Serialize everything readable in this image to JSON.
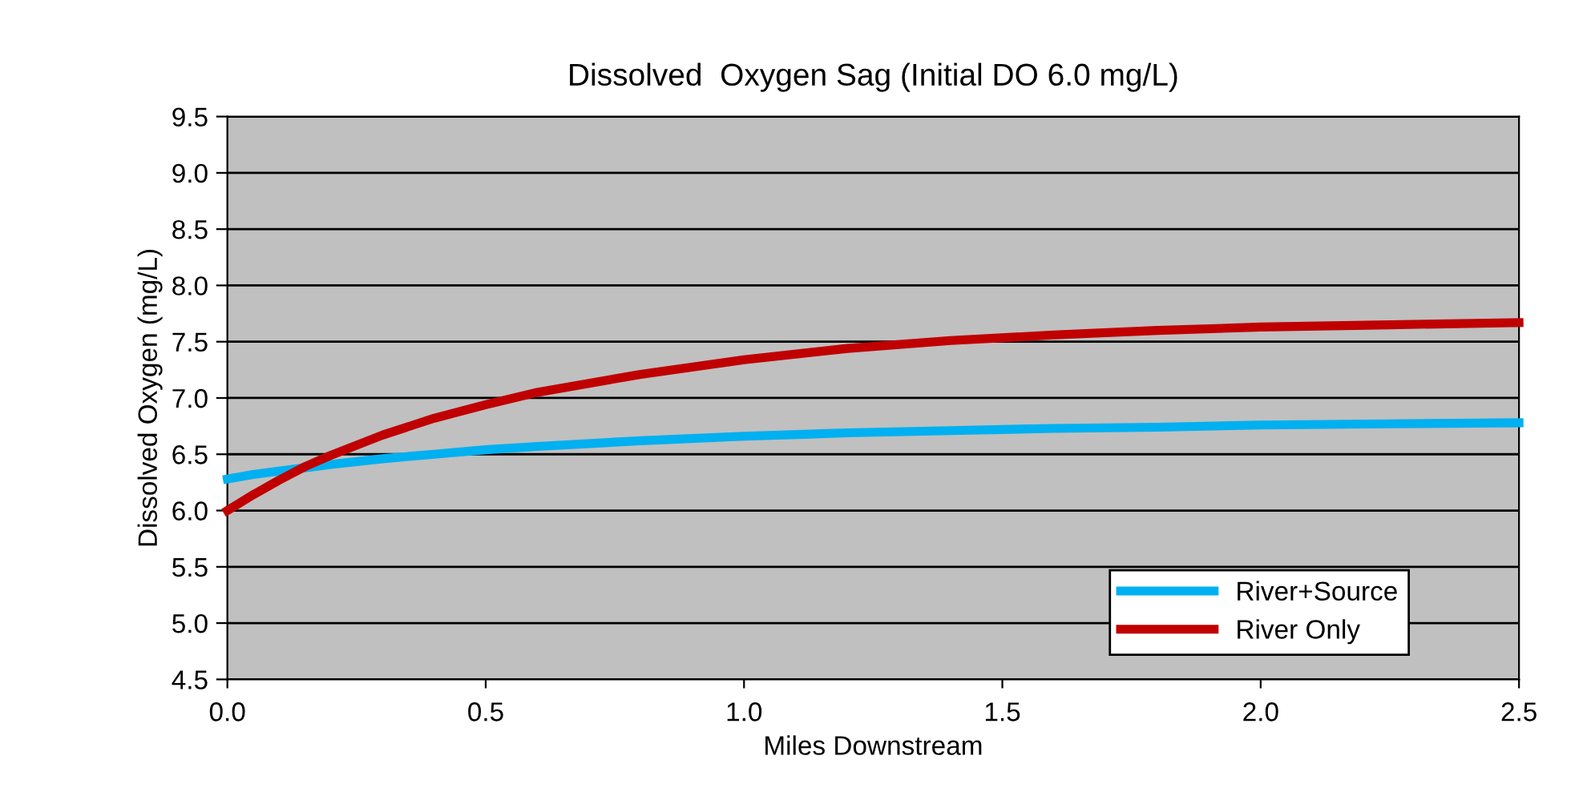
{
  "chart_data": {
    "type": "line",
    "title": "Dissolved  Oxygen Sag (Initial DO 6.0 mg/L)",
    "xlabel": "Miles Downstream",
    "ylabel": "Dissolved Oxygen (mg/L)",
    "x": [
      0,
      0.05,
      0.1,
      0.15,
      0.2,
      0.3,
      0.4,
      0.5,
      0.6,
      0.8,
      1.0,
      1.2,
      1.4,
      1.6,
      1.8,
      2.0,
      2.25,
      2.5
    ],
    "series": [
      {
        "name": "River+Source",
        "color": "#00b0f0",
        "values": [
          6.28,
          6.32,
          6.35,
          6.38,
          6.41,
          6.46,
          6.5,
          6.54,
          6.57,
          6.62,
          6.66,
          6.69,
          6.71,
          6.73,
          6.74,
          6.76,
          6.77,
          6.78
        ]
      },
      {
        "name": "River Only",
        "color": "#c00000",
        "values": [
          6.0,
          6.14,
          6.27,
          6.39,
          6.49,
          6.67,
          6.82,
          6.94,
          7.05,
          7.21,
          7.34,
          7.44,
          7.51,
          7.56,
          7.6,
          7.63,
          7.65,
          7.67
        ]
      }
    ],
    "xlim": [
      0,
      2.5
    ],
    "ylim": [
      4.5,
      9.5
    ],
    "xticks": [
      {
        "value": 0,
        "label": "0.0"
      },
      0.5,
      {
        "value": 1,
        "label": "1.0"
      },
      1.5,
      {
        "value": 2,
        "label": "2.0"
      },
      2.5
    ],
    "yticks": [
      4.5,
      {
        "value": 5,
        "label": "5.0"
      },
      5.5,
      {
        "value": 6,
        "label": "6.0"
      },
      6.5,
      {
        "value": 7,
        "label": "7.0"
      },
      7.5,
      {
        "value": 8,
        "label": "8.0"
      },
      8.5,
      {
        "value": 9,
        "label": "9.0"
      },
      9.5
    ],
    "grid": "y",
    "legend": "bottom right",
    "marker": "none",
    "line_style": "solid"
  }
}
